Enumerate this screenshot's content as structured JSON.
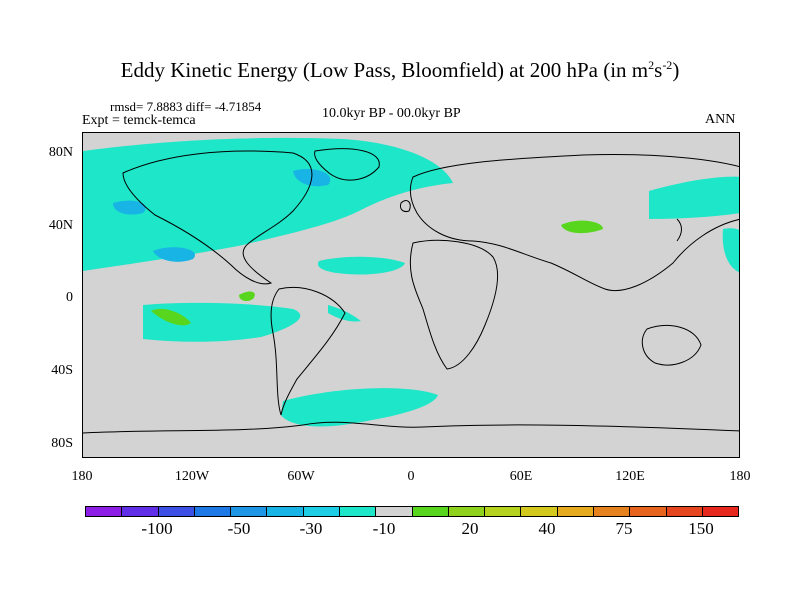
{
  "title": {
    "main": "Eddy Kinetic Energy (Low Pass, Bloomfield) at 200 hPa (in m",
    "sup1": "2",
    "s": "s",
    "sup2": "-2",
    "close": ")"
  },
  "header": {
    "stats": "rmsd= 7.8883 diff= -4.71854",
    "expt": "Expt = temck-temca",
    "period": "10.0kyr BP - 00.0kyr BP",
    "season": "ANN"
  },
  "map": {
    "projection": "cylindrical-equidistant",
    "lon_range": [
      -180,
      180
    ],
    "lat_range": [
      -90,
      90
    ],
    "background_color": "#d3d3d3",
    "coastline_color": "#000000",
    "lat_ticks": [
      "80N",
      "40N",
      "0",
      "40S",
      "80S"
    ],
    "lon_ticks": [
      "180",
      "120W",
      "60W",
      "0",
      "60E",
      "120E",
      "180"
    ]
  },
  "colorbar": {
    "colors": [
      "#8c1ee6",
      "#5f2ee6",
      "#3c50e6",
      "#1e78e6",
      "#1e96e6",
      "#19b4e6",
      "#1ecde6",
      "#1ee6c8",
      "#d3d3d3",
      "#58d61e",
      "#8ed21e",
      "#b4d21e",
      "#d2c81e",
      "#e6aa1e",
      "#e6821e",
      "#e6641e",
      "#e6461e",
      "#e6281e"
    ],
    "labels": [
      "-100",
      "-50",
      "-30",
      "-10",
      "20",
      "40",
      "75",
      "150"
    ]
  }
}
